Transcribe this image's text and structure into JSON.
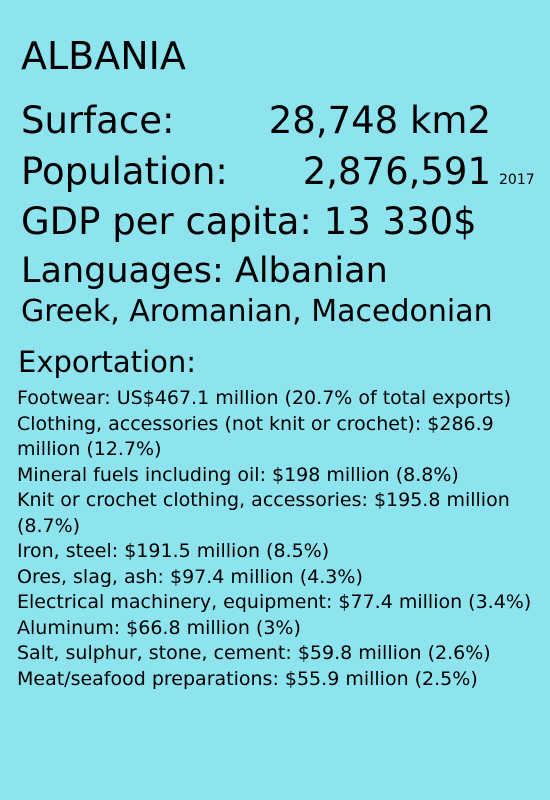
{
  "country": {
    "name": "ALBANIA"
  },
  "stats": {
    "surface_label": "Surface:",
    "surface_value": "28,748 km2",
    "population_label": "Population:",
    "population_value": "2,876,591",
    "population_year": "2017",
    "gdp": "GDP per capita: 13 330$"
  },
  "languages": {
    "main": "Languages: Albanian",
    "others": "Greek, Aromanian, Macedonian"
  },
  "exportation": {
    "heading": "Exportation:",
    "items": [
      "Footwear: US$467.1 million (20.7% of total exports)",
      "Clothing, accessories (not knit or crochet): $286.9 million (12.7%)",
      "Mineral fuels including oil: $198 million (8.8%)",
      "Knit or crochet clothing, accessories: $195.8 million (8.7%)",
      "Iron, steel: $191.5 million (8.5%)",
      "Ores, slag, ash: $97.4 million (4.3%)",
      "Electrical machinery, equipment: $77.4 million (3.4%)",
      "Aluminum: $66.8 million (3%)",
      "Salt, sulphur, stone, cement: $59.8 million (2.6%)",
      "Meat/seafood preparations: $55.9 million (2.5%)"
    ]
  },
  "colors": {
    "background": "#8ee4ee",
    "text": "#000000"
  }
}
